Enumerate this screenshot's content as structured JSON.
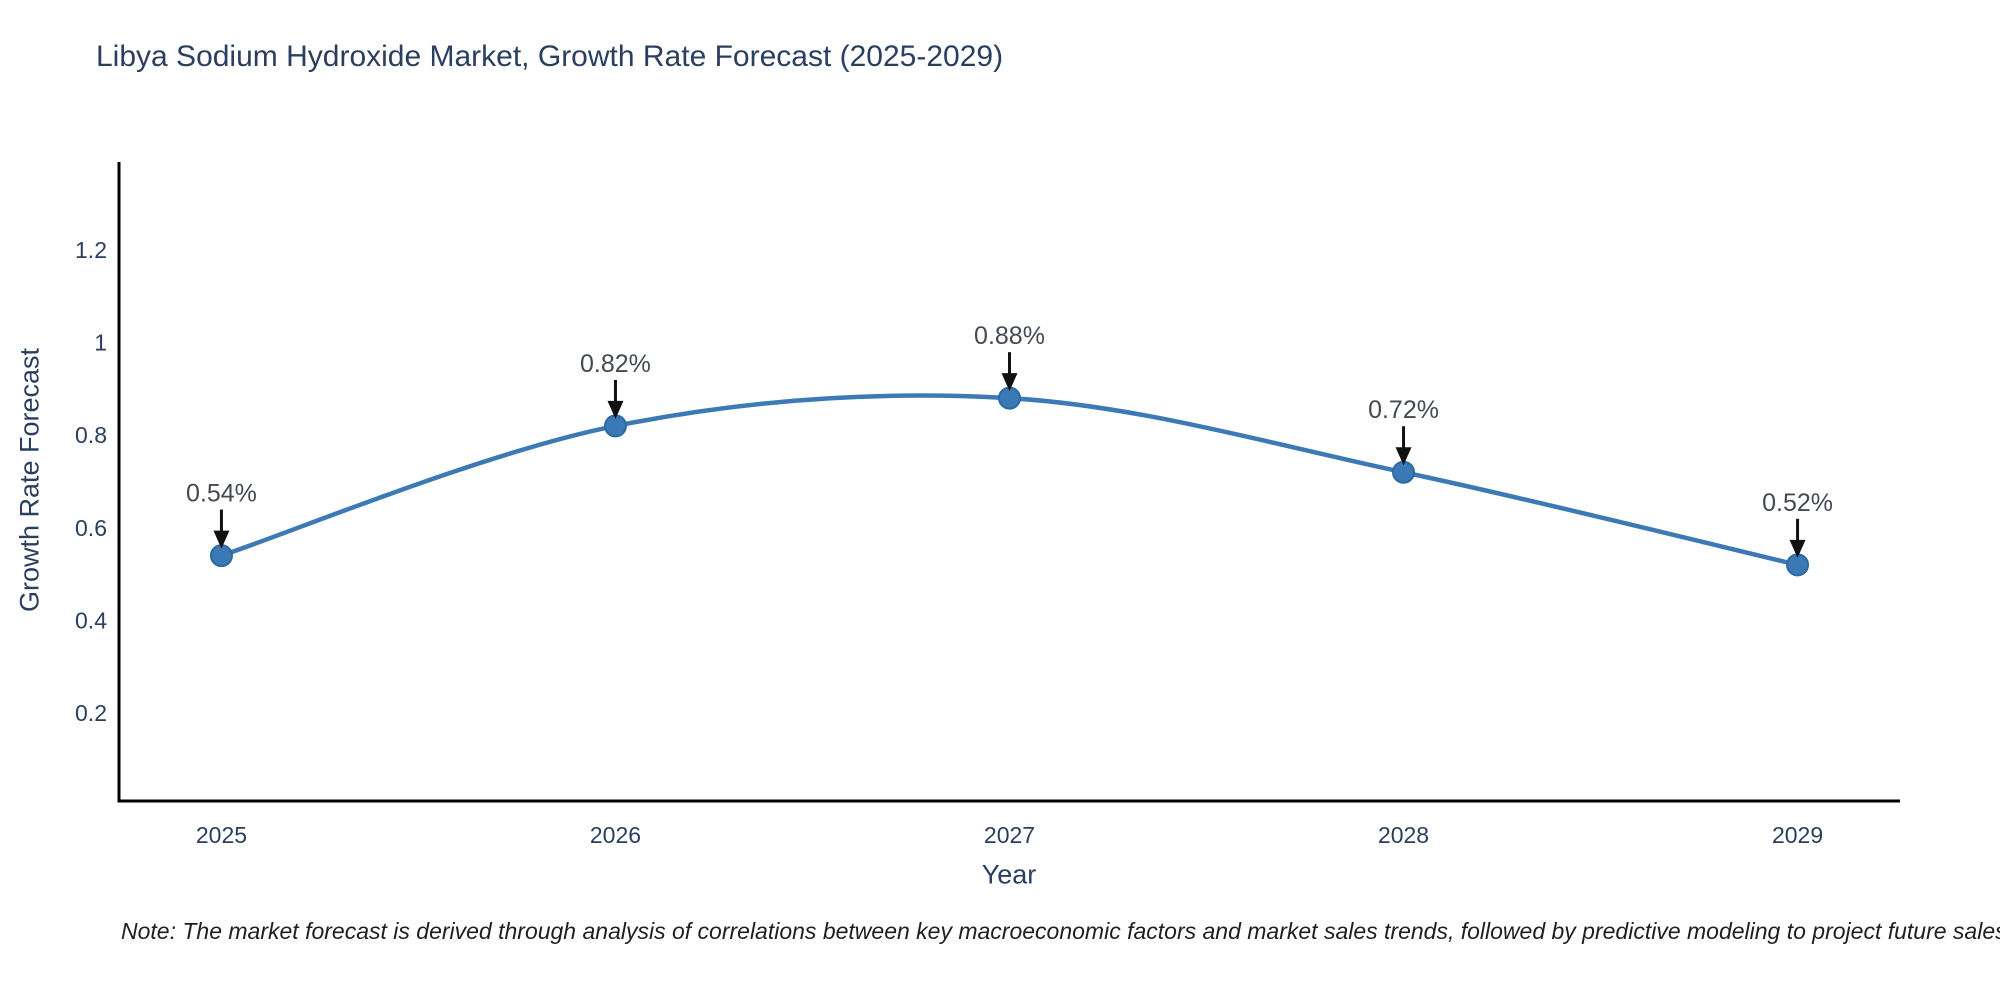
{
  "chart_data": {
    "type": "line",
    "title": "Libya Sodium Hydroxide Market, Growth Rate Forecast (2025-2029)",
    "xlabel": "Year",
    "ylabel": "Growth Rate Forecast",
    "x": [
      2025,
      2026,
      2027,
      2028,
      2029
    ],
    "values": [
      0.54,
      0.82,
      0.88,
      0.72,
      0.52
    ],
    "point_labels": [
      "0.54%",
      "0.82%",
      "0.88%",
      "0.72%",
      "0.52%"
    ],
    "line_shape": "spline",
    "grid": false,
    "legend": "none",
    "xlim": [
      2024.74,
      2029.26
    ],
    "ylim": [
      0.01,
      1.39
    ],
    "xticks": {
      "values": [
        2025,
        2026,
        2027,
        2028,
        2029
      ],
      "labels": [
        "2025",
        "2026",
        "2027",
        "2028",
        "2029"
      ]
    },
    "yticks": {
      "values": [
        0.2,
        0.4,
        0.6,
        0.8,
        1,
        1.2
      ],
      "labels": [
        "0.2",
        "0.4",
        "0.6",
        "0.8",
        "1",
        "1.2"
      ]
    },
    "note": "Note: The market forecast is derived through analysis of correlations between key macroeconomic factors and market sales trends, followed by predictive modeling to project future sales volumes.",
    "colors": {
      "background": "#ffffff",
      "line": "#3d7ab5",
      "marker": "#3a79b5",
      "marker_edge": "#2c6aa0",
      "axis": "#000000",
      "title_text": "#2a3f5f",
      "tick_text": "#2a3f5f",
      "annotation_text": "#444a54",
      "arrow": "#111111",
      "note_text": "#1f1f1f"
    }
  }
}
